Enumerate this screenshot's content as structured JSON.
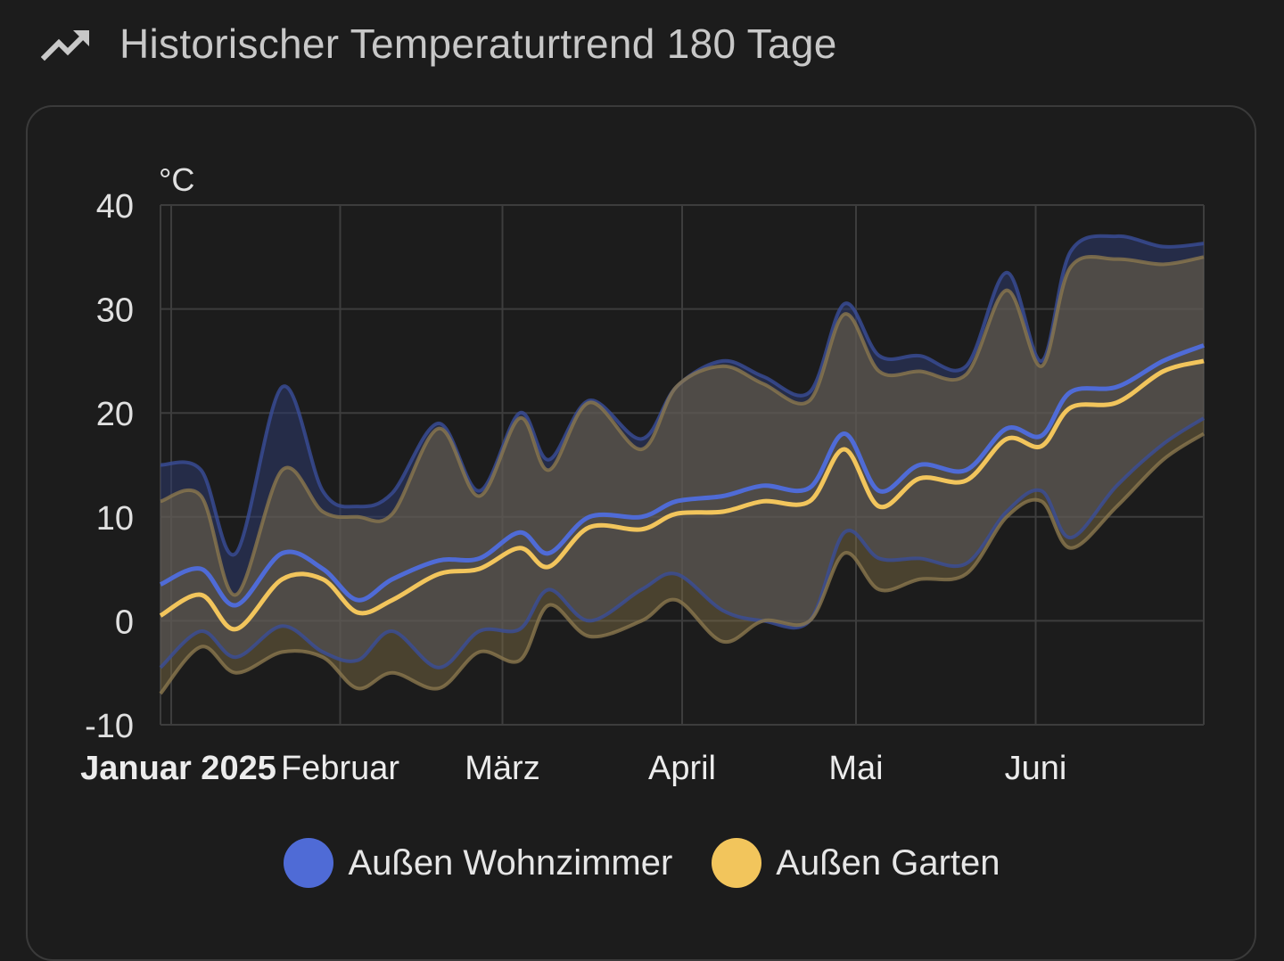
{
  "header": {
    "title": "Historischer Temperaturtrend 180 Tage",
    "icon": "trending-up-icon"
  },
  "chart_data": {
    "type": "line",
    "ylabel": "°C",
    "ylim": [
      -10,
      40
    ],
    "yticks": [
      "40",
      "30",
      "20",
      "10",
      "0",
      "-10"
    ],
    "xlim": [
      "2025-01-01",
      "2025-06-30"
    ],
    "xticks": [
      {
        "label": "Januar 2025",
        "x": "2025-01-01",
        "bold": true
      },
      {
        "label": "Februar",
        "x": "2025-02-01",
        "bold": false
      },
      {
        "label": "März",
        "x": "2025-03-01",
        "bold": false
      },
      {
        "label": "April",
        "x": "2025-04-01",
        "bold": false
      },
      {
        "label": "Mai",
        "x": "2025-05-01",
        "bold": false
      },
      {
        "label": "Juni",
        "x": "2025-06-01",
        "bold": false
      }
    ],
    "grid": true,
    "legend_position": "bottom",
    "series": [
      {
        "name": "Außen Wohnzimmer",
        "color": "#4f6bd6",
        "x": [
          "2025-01-01",
          "2025-01-08",
          "2025-01-14",
          "2025-01-22",
          "2025-01-29",
          "2025-02-04",
          "2025-02-10",
          "2025-02-18",
          "2025-02-25",
          "2025-03-04",
          "2025-03-09",
          "2025-03-16",
          "2025-03-25",
          "2025-03-31",
          "2025-04-08",
          "2025-04-15",
          "2025-04-23",
          "2025-04-29",
          "2025-05-05",
          "2025-05-12",
          "2025-05-20",
          "2025-05-27",
          "2025-06-02",
          "2025-06-07",
          "2025-06-15",
          "2025-06-23",
          "2025-06-30"
        ],
        "mean": [
          3.5,
          5,
          1.5,
          6.5,
          5,
          2,
          4,
          5.8,
          6,
          8.5,
          6.5,
          10,
          10,
          11.5,
          12,
          13,
          12.8,
          18,
          12.5,
          15,
          14.5,
          18.5,
          17.8,
          22,
          22.5,
          25,
          26.5
        ],
        "max": [
          15,
          14.5,
          6.5,
          22.5,
          12.5,
          11,
          12.3,
          19,
          12.5,
          20,
          15.5,
          21.2,
          17.5,
          22.5,
          25,
          23.5,
          22,
          30.5,
          25.5,
          25.5,
          24.5,
          33.5,
          25,
          35.5,
          37,
          36,
          36.3
        ],
        "min": [
          -4.5,
          -1,
          -3.5,
          -0.5,
          -3,
          -3.8,
          -1,
          -4.5,
          -1,
          -0.8,
          3,
          0,
          3,
          4.5,
          1,
          0,
          0,
          8.5,
          6,
          6,
          5.5,
          10.5,
          12.5,
          8,
          13,
          17,
          19.5
        ]
      },
      {
        "name": "Außen Garten",
        "color": "#f2c55c",
        "x": [
          "2025-01-01",
          "2025-01-08",
          "2025-01-14",
          "2025-01-22",
          "2025-01-29",
          "2025-02-04",
          "2025-02-10",
          "2025-02-18",
          "2025-02-25",
          "2025-03-04",
          "2025-03-09",
          "2025-03-16",
          "2025-03-25",
          "2025-03-31",
          "2025-04-08",
          "2025-04-15",
          "2025-04-23",
          "2025-04-29",
          "2025-05-05",
          "2025-05-12",
          "2025-05-20",
          "2025-05-27",
          "2025-06-02",
          "2025-06-07",
          "2025-06-15",
          "2025-06-23",
          "2025-06-30"
        ],
        "mean": [
          0.5,
          2.5,
          -0.8,
          4,
          4,
          0.8,
          2,
          4.5,
          5,
          7,
          5.2,
          9,
          8.8,
          10.3,
          10.5,
          11.5,
          11.5,
          16.5,
          11,
          13.7,
          13.5,
          17.5,
          16.8,
          20.5,
          21,
          24,
          25
        ],
        "max": [
          11.5,
          12,
          2.5,
          14.5,
          10.5,
          10,
          10.3,
          18.5,
          12,
          19.5,
          14.5,
          21,
          16.5,
          22.5,
          24.5,
          22.8,
          21.2,
          29.5,
          24,
          24,
          23.7,
          31.8,
          24.5,
          34,
          34.8,
          34.3,
          35
        ],
        "min": [
          -7,
          -2.5,
          -5,
          -3,
          -3.5,
          -6.5,
          -5,
          -6.5,
          -3,
          -3.8,
          1.5,
          -1.5,
          0,
          2,
          -2,
          0,
          0,
          6.5,
          3,
          4,
          4.5,
          10,
          11.5,
          7,
          11,
          15.5,
          18
        ]
      }
    ]
  }
}
